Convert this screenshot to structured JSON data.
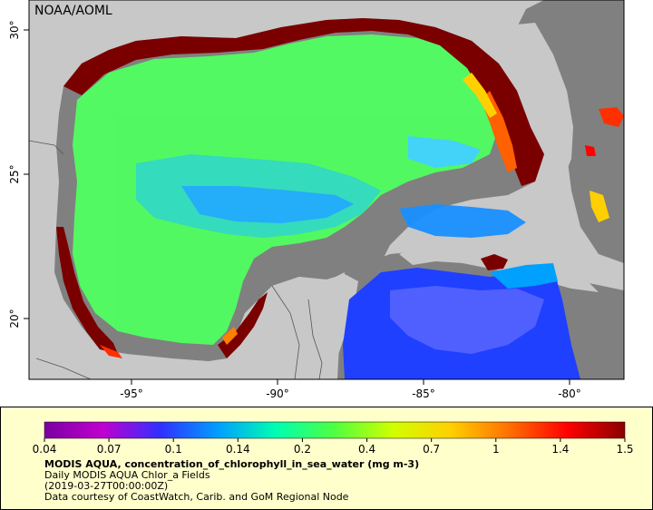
{
  "map": {
    "credit": "NOAA/AOML",
    "lon_ticks": [
      "-95°",
      "-90°",
      "-85°",
      "-80°"
    ],
    "lat_ticks": [
      "30°",
      "25°",
      "20°"
    ],
    "colors": {
      "land": "#c8c8c8",
      "nodata": "#808080",
      "coast_high": "#7a0000"
    }
  },
  "legend": {
    "ticks": [
      "0.04",
      "0.07",
      "0.1",
      "0.14",
      "0.2",
      "0.4",
      "0.7",
      "1",
      "1.4",
      "1.5"
    ],
    "gradient_colors": [
      "#7a00a0",
      "#c000d0",
      "#3030ff",
      "#00a0ff",
      "#00ffb0",
      "#50ff40",
      "#d0ff00",
      "#ffd000",
      "#ff7000",
      "#ff0000",
      "#8a0000"
    ],
    "title": "MODIS AQUA, concentration_of_chlorophyll_in_sea_water (mg m-3)",
    "line2": "Daily MODIS AQUA Chlor_a Fields",
    "line3": "(2019-03-27T00:00:00Z)",
    "line4": "Data courtesy of CoastWatch, Carib. and GoM Regional Node"
  }
}
